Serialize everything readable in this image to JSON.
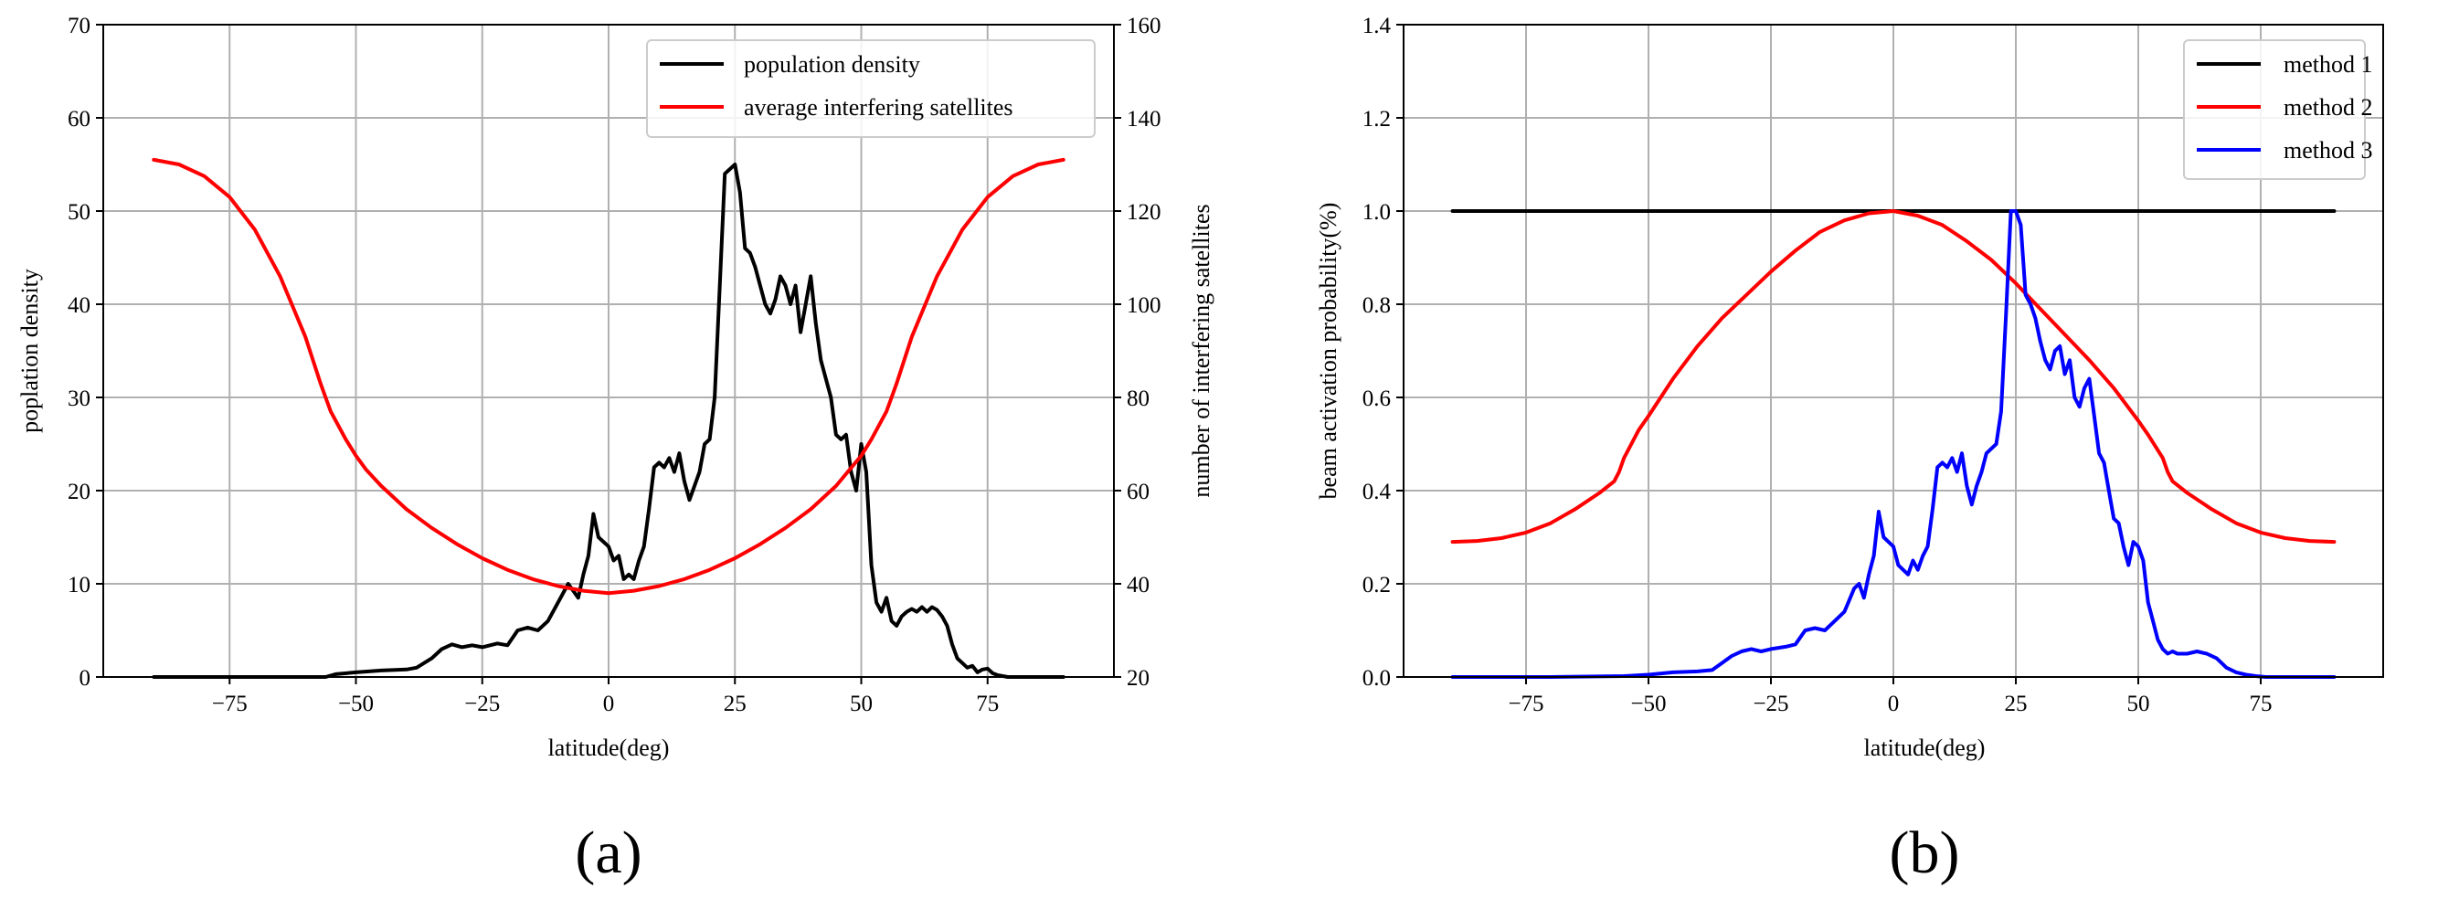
{
  "chart_data": [
    {
      "type": "line",
      "panel_label": "(a)",
      "xlabel": "latitude(deg)",
      "ylabel": "poplation density",
      "y2label": "number of interfering satellites",
      "xlim": [
        -100,
        100
      ],
      "ylim": [
        0,
        70
      ],
      "y2lim": [
        20,
        160
      ],
      "x_ticks": [
        -75,
        -50,
        -25,
        0,
        25,
        50,
        75
      ],
      "x_tick_labels": [
        "−75",
        "−50",
        "−25",
        "0",
        "25",
        "50",
        "75"
      ],
      "y_ticks": [
        0,
        10,
        20,
        30,
        40,
        50,
        60,
        70
      ],
      "y_tick_labels": [
        "0",
        "10",
        "20",
        "30",
        "40",
        "50",
        "60",
        "70"
      ],
      "y2_ticks": [
        20,
        40,
        60,
        80,
        100,
        120,
        140,
        160
      ],
      "y2_tick_labels": [
        "20",
        "40",
        "60",
        "80",
        "100",
        "120",
        "140",
        "160"
      ],
      "grid": true,
      "legend_position": "top-right",
      "series": [
        {
          "name": "population density",
          "color": "#000000",
          "axis": "left",
          "x": [
            -90,
            -80,
            -70,
            -60,
            -56,
            -54,
            -50,
            -45,
            -40,
            -38,
            -35,
            -33,
            -31,
            -29,
            -27,
            -25,
            -22,
            -20,
            -18,
            -16,
            -14,
            -12,
            -10,
            -8,
            -6,
            -5,
            -4,
            -3,
            -2,
            -1,
            0,
            1,
            2,
            3,
            4,
            5,
            6,
            7,
            8,
            9,
            10,
            11,
            12,
            13,
            14,
            15,
            16,
            17,
            18,
            19,
            20,
            21,
            22,
            23,
            24,
            25,
            26,
            27,
            28,
            29,
            30,
            31,
            32,
            33,
            34,
            35,
            36,
            37,
            38,
            39,
            40,
            41,
            42,
            43,
            44,
            45,
            46,
            47,
            48,
            49,
            50,
            51,
            52,
            53,
            54,
            55,
            56,
            57,
            58,
            59,
            60,
            61,
            62,
            63,
            64,
            65,
            66,
            67,
            68,
            69,
            70,
            71,
            72,
            73,
            74,
            75,
            76,
            77,
            78,
            79,
            80,
            82,
            85,
            90
          ],
          "y": [
            0,
            0,
            0,
            0,
            0,
            0.3,
            0.5,
            0.7,
            0.8,
            1.0,
            2.0,
            3.0,
            3.5,
            3.2,
            3.4,
            3.2,
            3.6,
            3.4,
            5.0,
            5.3,
            5.0,
            6.0,
            8.0,
            10.0,
            8.5,
            11.0,
            13.0,
            17.5,
            15.0,
            14.5,
            14.0,
            12.5,
            13.0,
            10.5,
            11.0,
            10.5,
            12.5,
            14.0,
            18.0,
            22.5,
            23.0,
            22.5,
            23.5,
            22.0,
            24.0,
            21.0,
            19.0,
            20.5,
            22.0,
            25.0,
            25.5,
            30.0,
            42.0,
            54.0,
            54.5,
            55.0,
            52.0,
            46.0,
            45.5,
            44.0,
            42.0,
            40.0,
            39.0,
            40.5,
            43.0,
            42.0,
            40.0,
            42.0,
            37.0,
            40.0,
            43.0,
            38.0,
            34.0,
            32.0,
            30.0,
            26.0,
            25.5,
            26.0,
            22.0,
            20.0,
            25.0,
            22.0,
            12.0,
            8.0,
            7.0,
            8.5,
            6.0,
            5.5,
            6.5,
            7.0,
            7.3,
            7.0,
            7.5,
            7.0,
            7.5,
            7.2,
            6.5,
            5.5,
            3.5,
            2.0,
            1.5,
            1.0,
            1.2,
            0.5,
            0.8,
            0.9,
            0.4,
            0.2,
            0.1,
            0,
            0,
            0,
            0,
            0
          ]
        },
        {
          "name": "average interfering satellites",
          "color": "#ff0000",
          "axis": "right",
          "x": [
            -90,
            -85,
            -80,
            -75,
            -70,
            -65,
            -60,
            -57,
            -56,
            -55,
            -52,
            -50,
            -48,
            -45,
            -40,
            -35,
            -30,
            -25,
            -20,
            -15,
            -10,
            -5,
            0,
            5,
            10,
            15,
            20,
            25,
            30,
            35,
            40,
            45,
            50,
            52,
            55,
            56,
            57,
            60,
            65,
            70,
            75,
            80,
            85,
            90
          ],
          "y": [
            131,
            130,
            127.5,
            123,
            116,
            106,
            93,
            83,
            80,
            77,
            71,
            67.5,
            64.5,
            61,
            56,
            52,
            48.5,
            45.5,
            43,
            41,
            39.5,
            38.5,
            38,
            38.5,
            39.5,
            41,
            43,
            45.5,
            48.5,
            52,
            56,
            61,
            67.5,
            71,
            77,
            80,
            83,
            93,
            106,
            116,
            123,
            127.5,
            130,
            131
          ]
        }
      ]
    },
    {
      "type": "line",
      "panel_label": "(b)",
      "xlabel": "latitude(deg)",
      "ylabel": "beam activation probability(%)",
      "xlim": [
        -100,
        100
      ],
      "ylim": [
        0,
        1.4
      ],
      "x_ticks": [
        -75,
        -50,
        -25,
        0,
        25,
        50,
        75
      ],
      "x_tick_labels": [
        "−75",
        "−50",
        "−25",
        "0",
        "25",
        "50",
        "75"
      ],
      "y_ticks": [
        0,
        0.2,
        0.4,
        0.6,
        0.8,
        1.0,
        1.2,
        1.4
      ],
      "y_tick_labels": [
        "0.0",
        "0.2",
        "0.4",
        "0.6",
        "0.8",
        "1.0",
        "1.2",
        "1.4"
      ],
      "grid": true,
      "legend_position": "top-right",
      "series": [
        {
          "name": "method 1",
          "color": "#000000",
          "x": [
            -90,
            90
          ],
          "y": [
            1.0,
            1.0
          ]
        },
        {
          "name": "method 2",
          "color": "#ff0000",
          "x": [
            -90,
            -85,
            -80,
            -75,
            -70,
            -65,
            -60,
            -57,
            -56,
            -55,
            -52,
            -50,
            -45,
            -40,
            -35,
            -30,
            -25,
            -20,
            -15,
            -10,
            -5,
            0,
            5,
            10,
            15,
            20,
            25,
            30,
            35,
            40,
            45,
            50,
            52,
            55,
            56,
            57,
            60,
            65,
            70,
            75,
            80,
            85,
            90
          ],
          "y": [
            0.29,
            0.292,
            0.298,
            0.31,
            0.33,
            0.36,
            0.395,
            0.42,
            0.44,
            0.47,
            0.53,
            0.56,
            0.64,
            0.71,
            0.77,
            0.82,
            0.87,
            0.915,
            0.955,
            0.98,
            0.995,
            1.0,
            0.99,
            0.97,
            0.935,
            0.895,
            0.845,
            0.79,
            0.735,
            0.68,
            0.62,
            0.55,
            0.52,
            0.47,
            0.44,
            0.42,
            0.395,
            0.36,
            0.33,
            0.31,
            0.298,
            0.292,
            0.29
          ]
        },
        {
          "name": "method 3",
          "color": "#0000ff",
          "x": [
            -90,
            -70,
            -55,
            -50,
            -45,
            -40,
            -37,
            -35,
            -33,
            -31,
            -29,
            -27,
            -25,
            -22,
            -20,
            -18,
            -16,
            -14,
            -12,
            -10,
            -8,
            -7,
            -6,
            -5,
            -4,
            -3,
            -2,
            -1,
            0,
            1,
            2,
            3,
            4,
            5,
            6,
            7,
            8,
            9,
            10,
            11,
            12,
            13,
            14,
            15,
            16,
            17,
            18,
            19,
            20,
            21,
            22,
            23,
            24,
            25,
            26,
            27,
            28,
            29,
            30,
            31,
            32,
            33,
            34,
            35,
            36,
            37,
            38,
            39,
            40,
            41,
            42,
            43,
            44,
            45,
            46,
            47,
            48,
            49,
            50,
            51,
            52,
            53,
            54,
            55,
            56,
            57,
            58,
            60,
            62,
            64,
            66,
            68,
            70,
            72,
            74,
            76,
            78,
            80,
            85,
            90
          ],
          "y": [
            0,
            0,
            0.002,
            0.005,
            0.01,
            0.012,
            0.015,
            0.03,
            0.045,
            0.055,
            0.06,
            0.055,
            0.06,
            0.065,
            0.07,
            0.1,
            0.105,
            0.1,
            0.12,
            0.14,
            0.19,
            0.2,
            0.17,
            0.22,
            0.26,
            0.355,
            0.3,
            0.29,
            0.28,
            0.24,
            0.23,
            0.22,
            0.25,
            0.23,
            0.26,
            0.28,
            0.36,
            0.45,
            0.46,
            0.45,
            0.47,
            0.44,
            0.48,
            0.41,
            0.37,
            0.41,
            0.44,
            0.48,
            0.49,
            0.5,
            0.57,
            0.78,
            1.0,
            1.0,
            0.97,
            0.82,
            0.8,
            0.77,
            0.72,
            0.68,
            0.66,
            0.7,
            0.71,
            0.65,
            0.68,
            0.6,
            0.58,
            0.62,
            0.64,
            0.56,
            0.48,
            0.46,
            0.4,
            0.34,
            0.33,
            0.28,
            0.24,
            0.29,
            0.28,
            0.25,
            0.16,
            0.12,
            0.08,
            0.06,
            0.05,
            0.055,
            0.05,
            0.05,
            0.055,
            0.05,
            0.04,
            0.02,
            0.01,
            0.005,
            0.002,
            0,
            0,
            0,
            0,
            0
          ]
        }
      ]
    }
  ]
}
